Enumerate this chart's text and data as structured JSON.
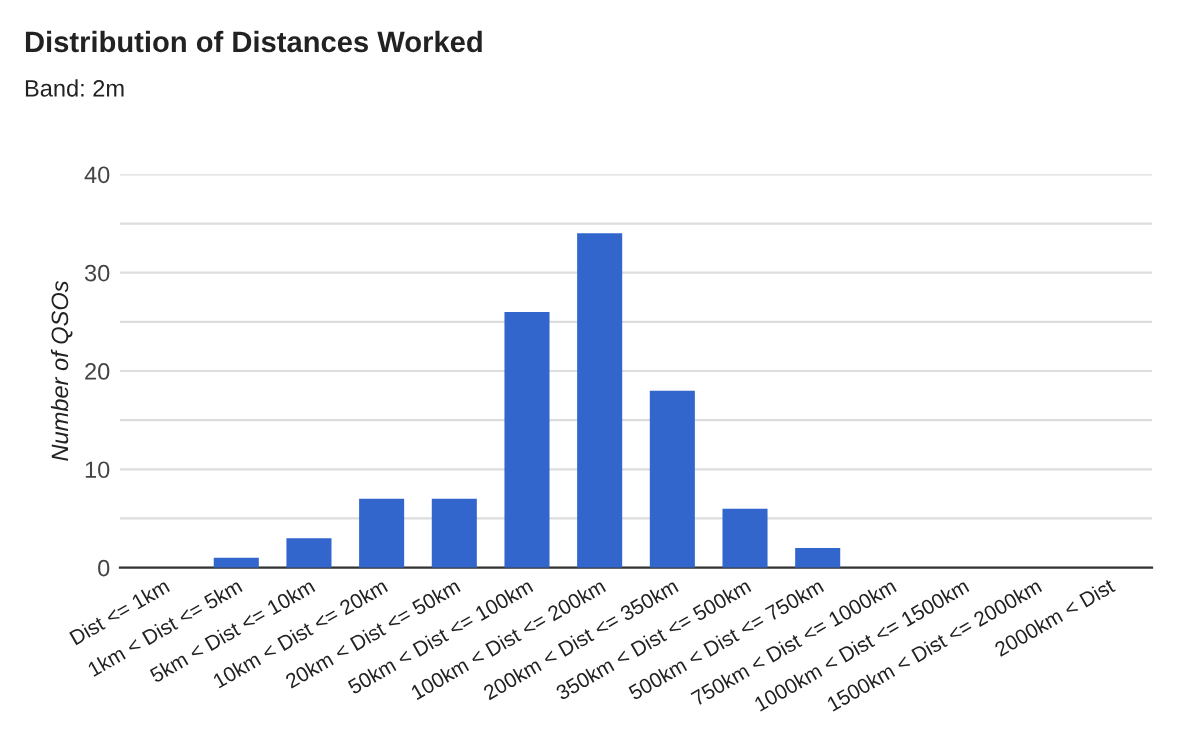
{
  "chart_data": {
    "type": "bar",
    "title": "Distribution of Distances Worked",
    "subtitle": "Band: 2m",
    "ylabel": "Number of QSOs",
    "categories": [
      "Dist <= 1km",
      "1km < Dist <= 5km",
      "5km < Dist <= 10km",
      "10km < Dist <= 20km",
      "20km < Dist <= 50km",
      "50km < Dist <= 100km",
      "100km < Dist <= 200km",
      "200km < Dist <= 350km",
      "350km < Dist <= 500km",
      "500km < Dist <= 750km",
      "750km < Dist <= 1000km",
      "1000km < Dist <= 1500km",
      "1500km < Dist <= 2000km",
      "2000km < Dist"
    ],
    "values": [
      0,
      1,
      3,
      7,
      7,
      26,
      34,
      18,
      6,
      2,
      0,
      0,
      0,
      0
    ],
    "color": "#3366cc",
    "ylim": [
      0,
      40
    ],
    "yticks": [
      0,
      {
        "value": 5,
        "label": null
      },
      10,
      {
        "value": 15,
        "label": null
      },
      20,
      {
        "value": 25,
        "label": null
      },
      30,
      {
        "value": 35,
        "label": null
      },
      40
    ],
    "grid": "y",
    "legend": false
  }
}
